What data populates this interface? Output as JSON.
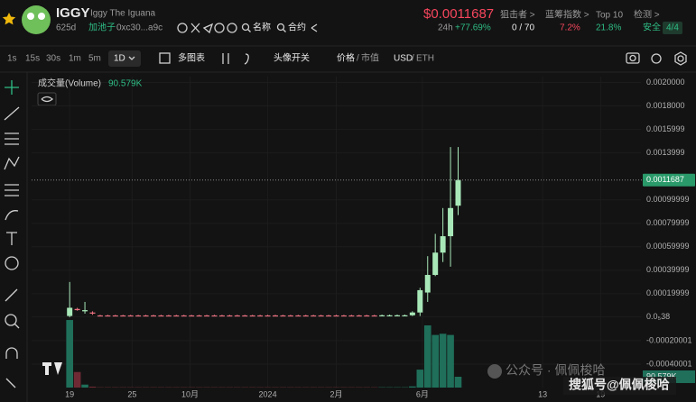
{
  "header": {
    "symbol": "IGGY",
    "name": "Iggy The Iguana",
    "age": "625d",
    "pool": "加池子",
    "address": "0xc30...a9c",
    "name_search": "名称",
    "contract_search": "合约",
    "price": "$0.0011687",
    "change_period": "24h",
    "change": "+77.69%",
    "stats": [
      {
        "label": "狙击者 >",
        "value": "0 / 70"
      },
      {
        "label": "蓝筹指数 >",
        "value": "7.2%"
      },
      {
        "label": "Top 10",
        "value": "21.8%"
      },
      {
        "label": "检测 >",
        "value": "安全",
        "checks": "4/4"
      }
    ]
  },
  "toolbar": {
    "intervals": [
      "1s",
      "15s",
      "30s",
      "1m",
      "5m",
      "1D"
    ],
    "multi_chart": "多图表",
    "avatar_toggle": "头像开关",
    "price": "价格",
    "market_cap": "市值",
    "usd": "USD",
    "eth": "ETH",
    "separator": "/"
  },
  "chart_data": {
    "type": "candlestick",
    "up_color": "#a8e8b8",
    "down_color": "#e8707f",
    "grid": true,
    "categories": [
      null,
      null,
      null,
      null,
      null,
      null,
      null,
      null,
      null,
      null,
      null,
      null,
      null,
      null,
      null,
      null,
      null,
      null,
      null,
      null,
      null,
      null,
      null,
      null,
      null,
      null,
      null,
      null,
      null,
      null,
      null,
      null,
      null,
      null,
      null,
      null,
      null,
      null,
      null,
      null,
      null,
      null,
      null,
      null,
      null,
      null,
      null,
      null,
      null,
      null,
      null,
      null
    ],
    "open": [
      1e-05,
      7e-05,
      5e-05,
      4e-05,
      1.5e-05,
      1.5e-05,
      1.5e-05,
      1.5e-05,
      1.5e-05,
      1.5e-05,
      1.5e-05,
      1.5e-05,
      1.5e-05,
      1.5e-05,
      1.5e-05,
      1.5e-05,
      1.5e-05,
      1.5e-05,
      1.5e-05,
      1.5e-05,
      1.5e-05,
      1.5e-05,
      1.5e-05,
      1.5e-05,
      1.5e-05,
      1.5e-05,
      1.5e-05,
      1.5e-05,
      1.5e-05,
      1.5e-05,
      1.5e-05,
      1.5e-05,
      1.5e-05,
      1.5e-05,
      1.5e-05,
      1.5e-05,
      1.5e-05,
      1.5e-05,
      1.5e-05,
      1.5e-05,
      1.5e-05,
      1.2e-05,
      1.2e-05,
      1.2e-05,
      1.2e-05,
      1.6e-05,
      4e-05,
      0.00021,
      0.00036,
      0.00055,
      0.00069,
      0.00095
    ],
    "high": [
      0.0003,
      8e-05,
      0.00013,
      5e-05,
      2e-05,
      2e-05,
      2e-05,
      2e-05,
      2e-05,
      2e-05,
      2e-05,
      2e-05,
      2e-05,
      2e-05,
      2e-05,
      2e-05,
      2e-05,
      2e-05,
      2e-05,
      2e-05,
      2e-05,
      2e-05,
      2e-05,
      2e-05,
      2e-05,
      2e-05,
      2e-05,
      2e-05,
      2e-05,
      2e-05,
      2e-05,
      2e-05,
      2e-05,
      2e-05,
      2e-05,
      2e-05,
      2e-05,
      2e-05,
      2e-05,
      2e-05,
      2e-05,
      2.2e-05,
      2.2e-05,
      2.2e-05,
      2.2e-05,
      5e-05,
      0.00025,
      0.00052,
      0.00071,
      0.00093,
      0.00145,
      0.00145
    ],
    "low": [
      0,
      5.5e-05,
      3e-05,
      2e-05,
      8e-06,
      8e-06,
      8e-06,
      8e-06,
      8e-06,
      8e-06,
      8e-06,
      8e-06,
      8e-06,
      8e-06,
      8e-06,
      8e-06,
      8e-06,
      8e-06,
      8e-06,
      8e-06,
      8e-06,
      8e-06,
      8e-06,
      8e-06,
      8e-06,
      8e-06,
      8e-06,
      8e-06,
      8e-06,
      8e-06,
      8e-06,
      8e-06,
      8e-06,
      8e-06,
      8e-06,
      8e-06,
      8e-06,
      8e-06,
      8e-06,
      8e-06,
      8e-06,
      1e-05,
      1e-05,
      1e-05,
      1e-05,
      1e-05,
      1e-05,
      0.00013,
      0.00035,
      0.00047,
      0.00043,
      0.00087
    ],
    "close": [
      8e-05,
      6e-05,
      6e-05,
      3e-05,
      1.2e-05,
      1.2e-05,
      1.2e-05,
      1.2e-05,
      1.2e-05,
      1.2e-05,
      1.2e-05,
      1.2e-05,
      1.2e-05,
      1.2e-05,
      1.2e-05,
      1.2e-05,
      1.2e-05,
      1.2e-05,
      1.2e-05,
      1.2e-05,
      1.2e-05,
      1.2e-05,
      1.2e-05,
      1.2e-05,
      1.2e-05,
      1.2e-05,
      1.2e-05,
      1.2e-05,
      1.2e-05,
      1.2e-05,
      1.2e-05,
      1.2e-05,
      1.2e-05,
      1.2e-05,
      1.2e-05,
      1.2e-05,
      1.2e-05,
      1.2e-05,
      1.2e-05,
      1.2e-05,
      1.2e-05,
      1.6e-05,
      1.6e-05,
      1.6e-05,
      1.6e-05,
      4e-05,
      0.00023,
      0.00036,
      0.00055,
      0.00069,
      0.00093,
      0.0011687
    ],
    "volume": {
      "name": "成交量(Volume)",
      "up_color": "#1f6f5a",
      "down_color": "#6e2a34",
      "values": [
        565000,
        130000,
        25000,
        8000,
        3000,
        3000,
        3000,
        3000,
        3000,
        3000,
        3000,
        3000,
        3000,
        3000,
        3000,
        3000,
        3000,
        3000,
        3000,
        3000,
        3000,
        3000,
        3000,
        3000,
        3000,
        3000,
        3000,
        3000,
        3000,
        3000,
        3000,
        3000,
        3000,
        3000,
        3000,
        3000,
        3000,
        3000,
        3000,
        3000,
        3000,
        3000,
        3000,
        3000,
        3000,
        10000,
        150000,
        520000,
        440000,
        450000,
        440000,
        90579
      ],
      "value_labels": [
        null,
        null,
        null,
        null,
        null,
        null,
        null,
        null,
        null,
        null,
        null,
        null,
        null,
        null,
        null,
        null,
        null,
        null,
        null,
        null,
        null,
        null,
        null,
        null,
        null,
        null,
        null,
        null,
        null,
        null,
        null,
        null,
        null,
        null,
        null,
        null,
        null,
        null,
        null,
        null,
        null,
        null,
        null,
        null,
        null,
        null,
        null,
        null,
        null,
        null,
        null,
        "90.579K"
      ]
    },
    "last_price": 0.0011687,
    "xlim": [
      -5,
      75
    ],
    "xticks": [
      {
        "value": 0,
        "label": "19"
      },
      {
        "value": 8.2,
        "label": "25"
      },
      {
        "value": 15.8,
        "label": "10月"
      },
      {
        "value": 26,
        "label": "2024"
      },
      {
        "value": 35,
        "label": "2月"
      },
      {
        "value": 46.3,
        "label": "6月"
      },
      {
        "value": 62.1,
        "label": "13"
      },
      {
        "value": 69.7,
        "label": "19"
      }
    ],
    "ylim": [
      -0.0006,
      0.00205
    ],
    "yticks": [
      {
        "value": 0.002,
        "label": "0.0020000"
      },
      {
        "value": 0.0018,
        "label": "0.0018000"
      },
      0.0015999,
      0.0013999,
      0.00099999,
      0.00079999,
      0.00059999,
      0.00039999,
      0.00019999,
      {
        "value": 3.8e-06,
        "label": "0.0₅38"
      },
      -0.00020001,
      -0.00040001
    ],
    "y2lim": [
      0,
      2600000
    ]
  },
  "watermark": [
    "公众号 · 佩佩梭哈",
    "搜狐号@佩佩梭哈"
  ]
}
